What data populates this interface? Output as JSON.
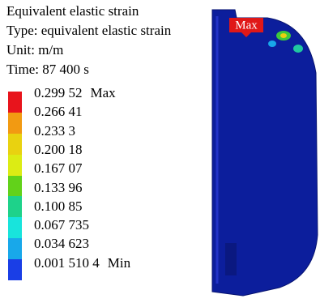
{
  "header": {
    "title": "Equivalent elastic strain",
    "type": "Type: equivalent elastic strain",
    "unit": "Unit: m/m",
    "time": "Time: 87 400 s"
  },
  "legend": {
    "labels": [
      "0.299 52",
      "0.266 41",
      "0.233 3",
      "0.200 18",
      "0.167 07",
      "0.133 96",
      "0.100 85",
      "0.067 735",
      "0.034 623",
      "0.001 510 4"
    ],
    "max_note": "Max",
    "min_note": "Min",
    "colors": [
      "#e8141c",
      "#f29a12",
      "#e9d210",
      "#dcec14",
      "#62d21a",
      "#1ed28a",
      "#18e4dc",
      "#18a8ea",
      "#1a3ee6"
    ]
  },
  "model": {
    "marker": "Max"
  }
}
